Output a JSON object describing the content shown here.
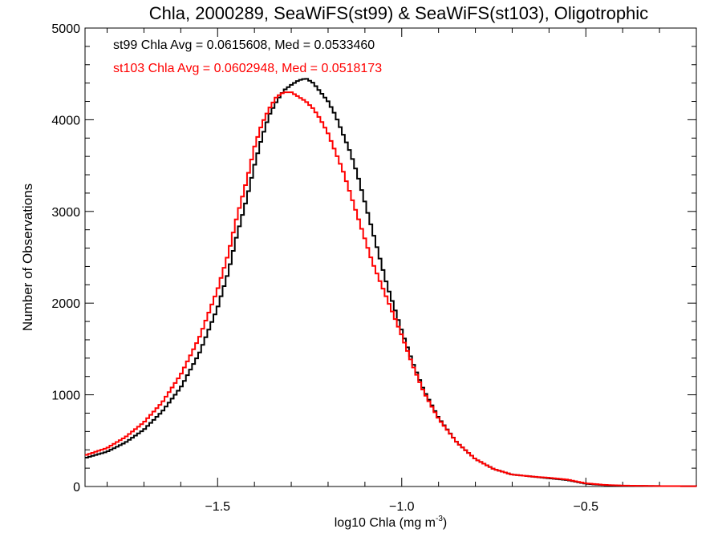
{
  "chart_data": {
    "type": "line",
    "title": "Chla, 2000289, SeaWiFS(st99) & SeaWiFS(st103), Oligotrophic",
    "xlabel": "log10 Chla (mg m",
    "xlabel_sup": "-3",
    "xlabel_close": ")",
    "ylabel": "Number of Observations",
    "xlim": [
      -1.86,
      -0.2
    ],
    "ylim": [
      0,
      5000
    ],
    "x_ticks": [
      -1.5,
      -1.0,
      -0.5
    ],
    "x_tick_labels": [
      "−1.5",
      "−1.0",
      "−0.5"
    ],
    "y_ticks": [
      0,
      1000,
      2000,
      3000,
      4000,
      5000
    ],
    "y_tick_labels": [
      "0",
      "1000",
      "2000",
      "3000",
      "4000",
      "5000"
    ],
    "grid": false,
    "annotations": [
      {
        "text": "st99 Chla Avg = 0.0615608, Med = 0.0533460",
        "color": "#000000"
      },
      {
        "text": "st103 Chla Avg = 0.0602948, Med = 0.0518173",
        "color": "#ff0000"
      }
    ],
    "series": [
      {
        "color": "#000000",
        "x": [
          -1.86,
          -1.8,
          -1.75,
          -1.7,
          -1.65,
          -1.6,
          -1.55,
          -1.5,
          -1.47,
          -1.45,
          -1.42,
          -1.4,
          -1.38,
          -1.36,
          -1.34,
          -1.32,
          -1.3,
          -1.28,
          -1.26,
          -1.24,
          -1.22,
          -1.2,
          -1.18,
          -1.16,
          -1.14,
          -1.12,
          -1.1,
          -1.08,
          -1.06,
          -1.04,
          -1.02,
          -1.0,
          -0.97,
          -0.94,
          -0.9,
          -0.85,
          -0.8,
          -0.75,
          -0.7,
          -0.65,
          -0.6,
          -0.55,
          -0.5,
          -0.45,
          -0.4,
          -0.3,
          -0.2
        ],
        "y": [
          310,
          380,
          480,
          620,
          820,
          1080,
          1450,
          1950,
          2350,
          2700,
          3150,
          3500,
          3800,
          4050,
          4200,
          4320,
          4380,
          4430,
          4450,
          4400,
          4300,
          4200,
          4050,
          3850,
          3650,
          3400,
          3100,
          2800,
          2500,
          2200,
          1950,
          1700,
          1350,
          1050,
          750,
          480,
          300,
          190,
          130,
          110,
          90,
          70,
          30,
          15,
          8,
          5,
          3
        ]
      },
      {
        "color": "#ff0000",
        "x": [
          -1.86,
          -1.8,
          -1.75,
          -1.7,
          -1.65,
          -1.6,
          -1.55,
          -1.5,
          -1.47,
          -1.45,
          -1.42,
          -1.4,
          -1.38,
          -1.36,
          -1.34,
          -1.32,
          -1.3,
          -1.28,
          -1.26,
          -1.24,
          -1.22,
          -1.2,
          -1.18,
          -1.16,
          -1.14,
          -1.12,
          -1.1,
          -1.08,
          -1.06,
          -1.04,
          -1.02,
          -1.0,
          -0.97,
          -0.94,
          -0.9,
          -0.85,
          -0.8,
          -0.75,
          -0.7,
          -0.65,
          -0.6,
          -0.55,
          -0.5,
          -0.45,
          -0.4,
          -0.3,
          -0.2
        ],
        "y": [
          340,
          420,
          540,
          700,
          920,
          1220,
          1620,
          2150,
          2550,
          2900,
          3350,
          3700,
          3950,
          4120,
          4250,
          4300,
          4300,
          4250,
          4200,
          4120,
          4000,
          3850,
          3650,
          3450,
          3200,
          2950,
          2700,
          2450,
          2250,
          2050,
          1850,
          1650,
          1320,
          1030,
          740,
          480,
          300,
          190,
          130,
          110,
          95,
          75,
          35,
          18,
          10,
          5,
          3
        ]
      }
    ]
  }
}
